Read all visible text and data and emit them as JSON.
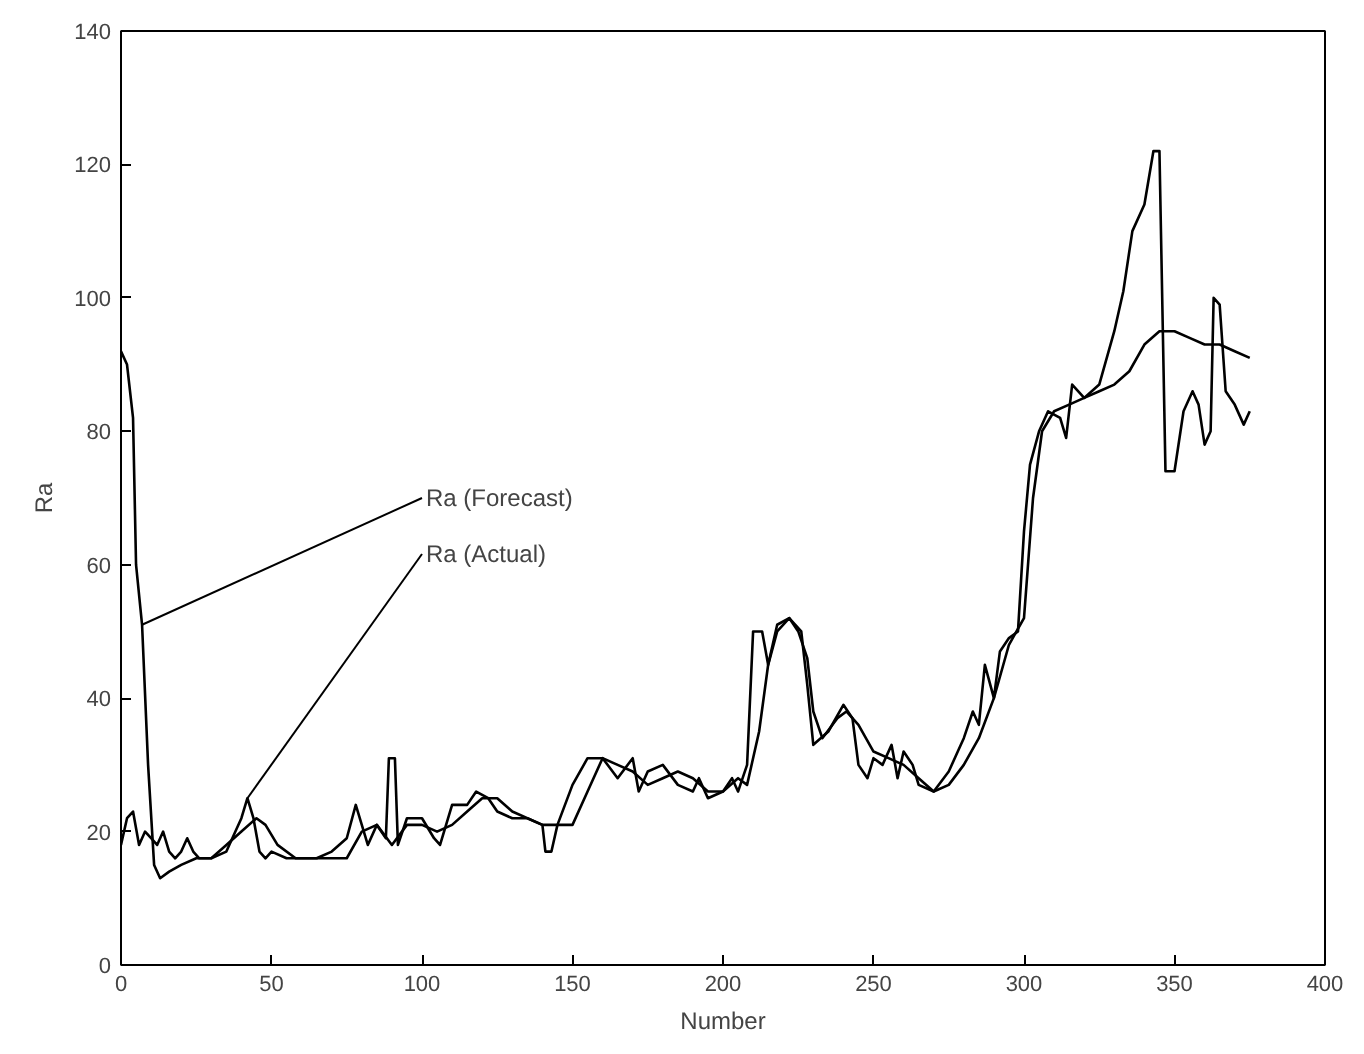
{
  "chart_data": {
    "type": "line",
    "xlabel": "Number",
    "ylabel": "Ra",
    "xlim": [
      0,
      400
    ],
    "ylim": [
      0,
      140
    ],
    "xticks": [
      0,
      50,
      100,
      150,
      200,
      250,
      300,
      350,
      400
    ],
    "yticks": [
      0,
      20,
      40,
      60,
      80,
      100,
      120,
      140
    ],
    "grid": false,
    "marker": "none",
    "line_style": "solid",
    "series": [
      {
        "color": "#000000",
        "x": [
          0,
          2,
          4,
          6,
          8,
          10,
          12,
          14,
          16,
          18,
          20,
          22,
          24,
          26,
          30,
          35,
          38,
          40,
          42,
          44,
          46,
          48,
          50,
          55,
          60,
          65,
          70,
          75,
          78,
          80,
          82,
          85,
          88,
          89,
          91,
          92,
          95,
          100,
          104,
          106,
          110,
          115,
          118,
          122,
          125,
          130,
          135,
          140,
          141,
          143,
          145,
          150,
          155,
          160,
          165,
          170,
          172,
          175,
          180,
          185,
          190,
          192,
          195,
          200,
          203,
          205,
          208,
          210,
          213,
          215,
          218,
          222,
          226,
          228,
          230,
          235,
          240,
          243,
          245,
          248,
          250,
          253,
          256,
          258,
          260,
          263,
          265,
          270,
          275,
          278,
          280,
          283,
          285,
          287,
          290,
          292,
          295,
          298,
          300,
          302,
          305,
          308,
          312,
          314,
          316,
          320,
          325,
          330,
          333,
          336,
          340,
          343,
          345,
          347,
          350,
          353,
          356,
          358,
          360,
          362,
          363,
          365,
          367,
          370,
          373,
          375
        ],
        "values": [
          18,
          22,
          23,
          18,
          20,
          19,
          18,
          20,
          17,
          16,
          17,
          19,
          17,
          16,
          16,
          17,
          20,
          22,
          25,
          22,
          17,
          16,
          17,
          16,
          16,
          16,
          17,
          19,
          24,
          21,
          18,
          21,
          19,
          31,
          31,
          18,
          22,
          22,
          19,
          18,
          24,
          24,
          26,
          25,
          23,
          22,
          22,
          21,
          17,
          17,
          21,
          27,
          31,
          31,
          28,
          31,
          26,
          29,
          30,
          27,
          26,
          28,
          25,
          26,
          28,
          26,
          30,
          50,
          50,
          45,
          50,
          52,
          50,
          42,
          33,
          35,
          39,
          37,
          30,
          28,
          31,
          30,
          33,
          28,
          32,
          30,
          27,
          26,
          29,
          32,
          34,
          38,
          36,
          45,
          40,
          47,
          49,
          50,
          65,
          75,
          80,
          83,
          82,
          79,
          87,
          85,
          87,
          95,
          101,
          110,
          114,
          122,
          122,
          74,
          74,
          83,
          86,
          84,
          78,
          80,
          100,
          99,
          86,
          84,
          81,
          83
        ]
      },
      {
        "color": "#000000",
        "x": [
          0,
          2,
          4,
          5,
          7,
          9,
          11,
          13,
          16,
          20,
          25,
          30,
          35,
          40,
          45,
          48,
          52,
          58,
          65,
          70,
          75,
          80,
          85,
          90,
          95,
          100,
          105,
          110,
          115,
          120,
          125,
          130,
          140,
          145,
          150,
          155,
          160,
          165,
          170,
          175,
          180,
          185,
          190,
          195,
          200,
          205,
          208,
          212,
          215,
          218,
          222,
          225,
          228,
          230,
          233,
          238,
          241,
          245,
          250,
          255,
          260,
          265,
          270,
          275,
          280,
          285,
          290,
          295,
          300,
          303,
          306,
          310,
          315,
          320,
          325,
          330,
          335,
          340,
          345,
          350,
          355,
          360,
          365,
          370,
          375
        ],
        "values": [
          92,
          90,
          82,
          60,
          51,
          30,
          15,
          13,
          14,
          15,
          16,
          16,
          18,
          20,
          22,
          21,
          18,
          16,
          16,
          16,
          16,
          20,
          21,
          18,
          21,
          21,
          20,
          21,
          23,
          25,
          25,
          23,
          21,
          21,
          21,
          26,
          31,
          30,
          29,
          27,
          28,
          29,
          28,
          26,
          26,
          28,
          27,
          35,
          45,
          51,
          52,
          50,
          46,
          38,
          34,
          37,
          38,
          36,
          32,
          31,
          30,
          28,
          26,
          27,
          30,
          34,
          40,
          48,
          52,
          70,
          80,
          83,
          84,
          85,
          86,
          87,
          89,
          93,
          95,
          95,
          94,
          93,
          93,
          92,
          91
        ]
      }
    ],
    "annotations": [
      {
        "text": "Ra (Forecast)",
        "x": 7,
        "y": 51
      },
      {
        "text": "Ra (Actual)",
        "x": 42,
        "y": 25
      }
    ]
  }
}
